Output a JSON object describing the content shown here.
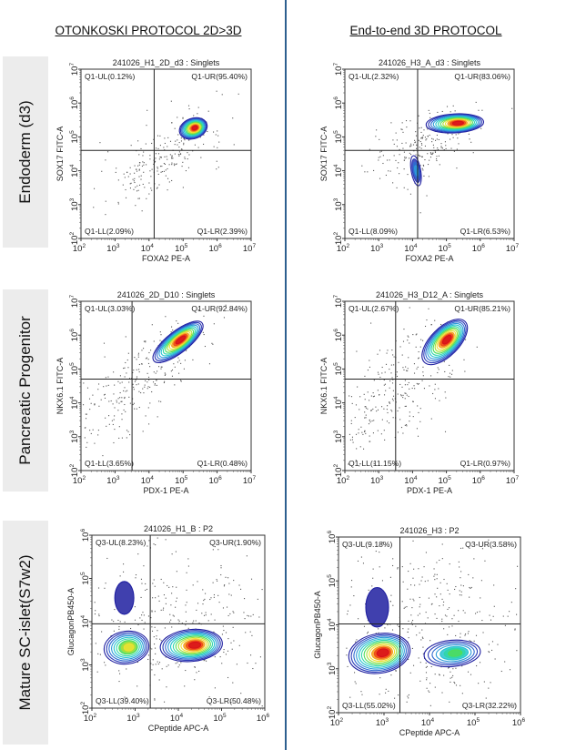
{
  "columns": [
    "OTONKOSKI PROTOCOL 2D>3D",
    "End-to-end 3D PROTOCOL"
  ],
  "rows": [
    "Endoderm (d3)",
    "Pancreatic Progenitor",
    "Mature SC-islet(S7w2)"
  ],
  "chart_data": [
    {
      "type": "scatter",
      "subtype": "flow-cytometry-contour",
      "title": "241026_H1_2D_d3 : Singlets",
      "xlabel": "FOXA2 PE-A",
      "ylabel": "SOX17 FITC-A",
      "xscale": "log",
      "yscale": "log",
      "xlim": [
        2,
        7
      ],
      "ylim": [
        2,
        7
      ],
      "xticks": [
        2,
        3,
        4,
        5,
        6,
        7
      ],
      "yticks": [
        2,
        3,
        4,
        5,
        6,
        7
      ],
      "gate": [
        4.15,
        4.6
      ],
      "quadrants": {
        "UL": "Q1-UL(0.12%)",
        "UR": "Q1-UR(95.40%)",
        "LL": "Q1-LL(2.09%)",
        "LR": "Q1-LR(2.39%)"
      },
      "populations": [
        {
          "cx": 5.3,
          "cy": 5.25,
          "rx": 0.42,
          "ry": 0.3,
          "angle": -20,
          "peak": 1.0
        }
      ],
      "scatter": [
        {
          "cx": 4.4,
          "cy": 4.4,
          "sx": 0.9,
          "sy": 0.7,
          "rho": 0.7,
          "n": 230
        }
      ]
    },
    {
      "type": "scatter",
      "subtype": "flow-cytometry-contour",
      "title": "241026_H3_A_d3 : Singlets",
      "xlabel": "FOXA2 PE-A",
      "ylabel": "SOX17 FITC-A",
      "xscale": "log",
      "yscale": "log",
      "xlim": [
        2,
        7
      ],
      "ylim": [
        2,
        7
      ],
      "xticks": [
        2,
        3,
        4,
        5,
        6,
        7
      ],
      "yticks": [
        2,
        3,
        4,
        5,
        6,
        7
      ],
      "gate": [
        4.15,
        4.6
      ],
      "quadrants": {
        "UL": "Q1-UL(2.32%)",
        "UR": "Q1-UR(83.06%)",
        "LL": "Q1-LL(8.09%)",
        "LR": "Q1-LR(6.53%)"
      },
      "populations": [
        {
          "cx": 5.25,
          "cy": 5.4,
          "rx": 0.85,
          "ry": 0.28,
          "angle": -3,
          "peak": 1.0
        },
        {
          "cx": 4.1,
          "cy": 4.0,
          "rx": 0.14,
          "ry": 0.45,
          "angle": -10,
          "peak": 0.35
        }
      ],
      "scatter": [
        {
          "cx": 4.4,
          "cy": 4.8,
          "sx": 0.8,
          "sy": 0.6,
          "rho": 0.6,
          "n": 230
        }
      ]
    },
    {
      "type": "scatter",
      "subtype": "flow-cytometry-contour",
      "title": "241026_2D_D10 : Singlets",
      "xlabel": "PDX-1 PE-A",
      "ylabel": "NKX6.1 FITC-A",
      "xscale": "log",
      "yscale": "log",
      "xlim": [
        2,
        7
      ],
      "ylim": [
        2,
        7
      ],
      "xticks": [
        2,
        3,
        4,
        5,
        6,
        7
      ],
      "yticks": [
        2,
        3,
        4,
        5,
        6,
        7
      ],
      "gate": [
        3.5,
        4.7
      ],
      "quadrants": {
        "UL": "Q1-UL(3.03%)",
        "UR": "Q1-UR(92.84%)",
        "LL": "Q1-LL(3.65%)",
        "LR": "Q1-LR(0.48%)"
      },
      "populations": [
        {
          "cx": 4.85,
          "cy": 5.8,
          "rx": 0.9,
          "ry": 0.32,
          "angle": -38,
          "peak": 1.0
        }
      ],
      "scatter": [
        {
          "cx": 3.6,
          "cy": 4.6,
          "sx": 1.0,
          "sy": 1.0,
          "rho": 0.75,
          "n": 260
        }
      ]
    },
    {
      "type": "scatter",
      "subtype": "flow-cytometry-contour",
      "title": "241026_H3_D12_A : Singlets",
      "xlabel": "PDX-1 PE-A",
      "ylabel": "NKX6.1 FITC-A",
      "xscale": "log",
      "yscale": "log",
      "xlim": [
        2,
        7
      ],
      "ylim": [
        2,
        7
      ],
      "xticks": [
        2,
        3,
        4,
        5,
        6,
        7
      ],
      "yticks": [
        2,
        3,
        4,
        5,
        6,
        7
      ],
      "gate": [
        3.5,
        4.7
      ],
      "quadrants": {
        "UL": "Q1-UL(2.67%)",
        "UR": "Q1-UR(85.21%)",
        "LL": "Q1-LL(11.15%)",
        "LR": "Q1-LR(0.97%)"
      },
      "populations": [
        {
          "cx": 4.95,
          "cy": 5.8,
          "rx": 0.85,
          "ry": 0.42,
          "angle": -45,
          "peak": 1.0
        }
      ],
      "scatter": [
        {
          "cx": 3.4,
          "cy": 4.3,
          "sx": 1.0,
          "sy": 1.1,
          "rho": 0.65,
          "n": 300
        }
      ]
    },
    {
      "type": "scatter",
      "subtype": "flow-cytometry-contour",
      "title": "241026_H1_B : P2",
      "xlabel": "CPeptide APC-A",
      "ylabel": "GlucagonPB450-A",
      "xscale": "log",
      "yscale": "log",
      "xlim": [
        2,
        6
      ],
      "ylim": [
        2,
        6
      ],
      "xticks": [
        2,
        3,
        4,
        5,
        6
      ],
      "yticks": [
        2,
        3,
        4,
        5,
        6
      ],
      "gate": [
        3.35,
        3.95
      ],
      "quadrants": {
        "UL": "Q3-UL(8.23%)",
        "UR": "Q3-UR(1.90%)",
        "LL": "Q3-LL(39.40%)",
        "LR": "Q3-LR(50.48%)"
      },
      "populations": [
        {
          "cx": 2.8,
          "cy": 3.4,
          "rx": 0.52,
          "ry": 0.38,
          "angle": -8,
          "peak": 0.75
        },
        {
          "cx": 4.3,
          "cy": 3.45,
          "rx": 0.72,
          "ry": 0.37,
          "angle": -5,
          "peak": 1.0
        },
        {
          "cx": 2.75,
          "cy": 4.55,
          "rx": 0.22,
          "ry": 0.38,
          "angle": 0,
          "peak": 0.1
        }
      ],
      "scatter": [
        {
          "cx": 3.9,
          "cy": 4.0,
          "sx": 1.1,
          "sy": 0.9,
          "rho": 0.0,
          "n": 380
        }
      ]
    },
    {
      "type": "scatter",
      "subtype": "flow-cytometry-contour",
      "title": "241026_H3 : P2",
      "xlabel": "CPeptide APC-A",
      "ylabel": "GlucagonPB450-A",
      "xscale": "log",
      "yscale": "log",
      "xlim": [
        2,
        6
      ],
      "ylim": [
        2,
        6
      ],
      "xticks": [
        2,
        3,
        4,
        5,
        6
      ],
      "yticks": [
        2,
        3,
        4,
        5,
        6
      ],
      "gate": [
        3.35,
        4.02
      ],
      "quadrants": {
        "UL": "Q3-UL(9.18%)",
        "UR": "Q3-UR(3.58%)",
        "LL": "Q3-LL(55.02%)",
        "LR": "Q3-LR(32.22%)"
      },
      "populations": [
        {
          "cx": 2.9,
          "cy": 3.35,
          "rx": 0.68,
          "ry": 0.45,
          "angle": -10,
          "peak": 1.0
        },
        {
          "cx": 4.5,
          "cy": 3.35,
          "rx": 0.62,
          "ry": 0.3,
          "angle": -5,
          "peak": 0.55
        },
        {
          "cx": 2.85,
          "cy": 4.4,
          "rx": 0.25,
          "ry": 0.45,
          "angle": 0,
          "peak": 0.1
        }
      ],
      "scatter": [
        {
          "cx": 4.0,
          "cy": 4.0,
          "sx": 1.1,
          "sy": 1.0,
          "rho": 0.0,
          "n": 420
        }
      ]
    }
  ]
}
